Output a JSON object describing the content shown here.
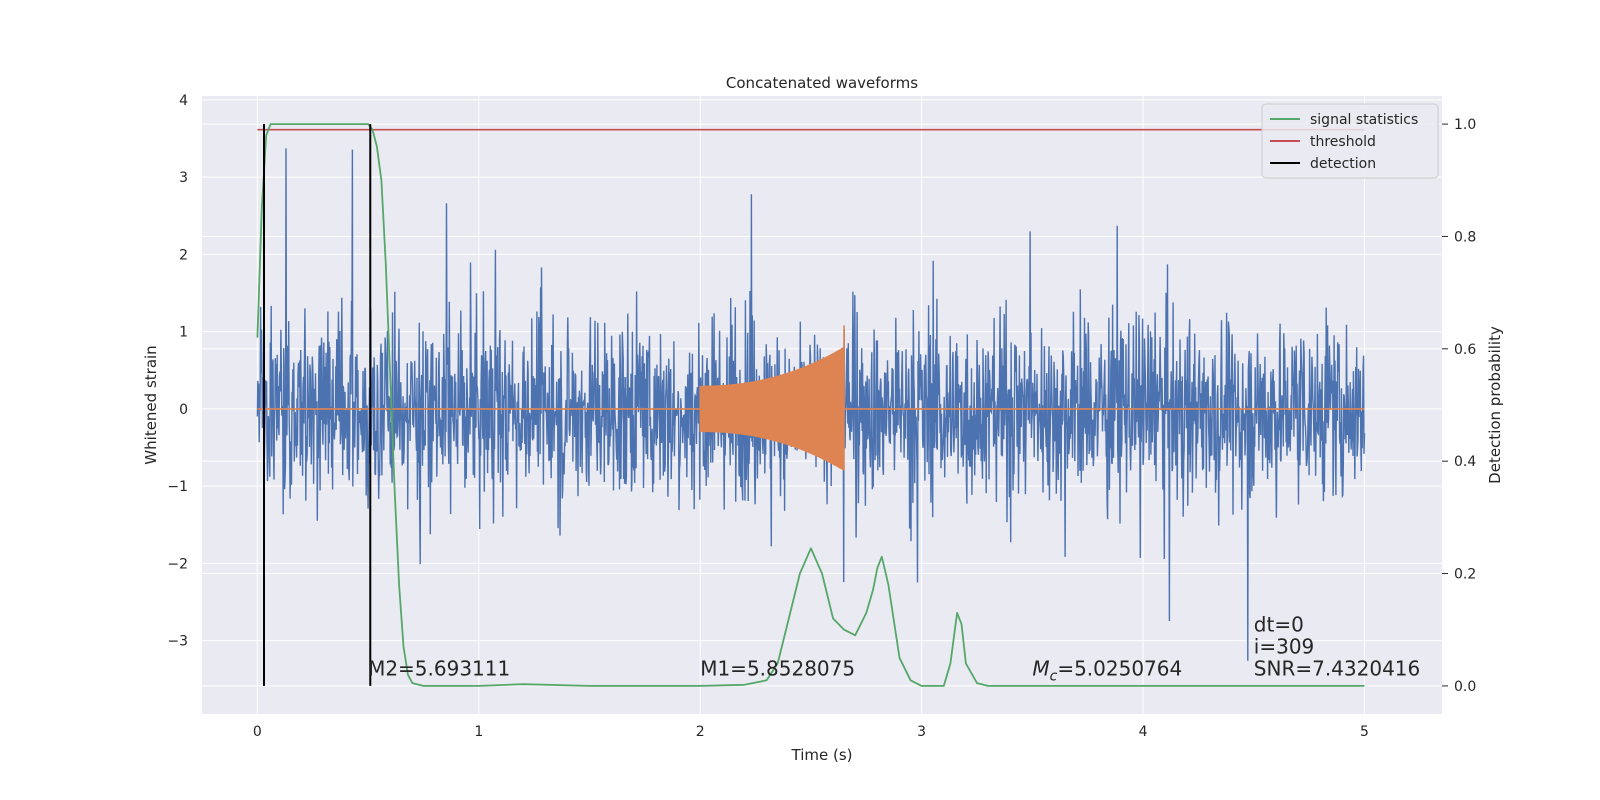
{
  "chart_data": {
    "type": "line",
    "title": "Concatenated waveforms",
    "xlabel": "Time (s)",
    "ylabel": "Whitened strain",
    "ylabel_right": "Detection probability",
    "xlim": [
      -0.25,
      5.35
    ],
    "ylim": [
      -3.95,
      4.05
    ],
    "ylim_right": [
      -0.05,
      1.05
    ],
    "grid": true,
    "xticks": [
      0,
      1,
      2,
      3,
      4,
      5
    ],
    "xtick_labels": [
      "0",
      "1",
      "2",
      "3",
      "4",
      "5"
    ],
    "yticks": [
      -3,
      -2,
      -1,
      0,
      1,
      2,
      3,
      4
    ],
    "ytick_labels": [
      "−3",
      "−2",
      "−1",
      "0",
      "1",
      "2",
      "3",
      "4"
    ],
    "yticks_right": [
      0.0,
      0.2,
      0.4,
      0.6,
      0.8,
      1.0
    ],
    "ytick_labels_right": [
      "0.0",
      "0.2",
      "0.4",
      "0.6",
      "0.8",
      "1.0"
    ],
    "legend_position": "top-right",
    "legend": [
      "signal statistics",
      "threshold",
      "detection"
    ],
    "colors": {
      "strain": "#4c72b0",
      "template": "#dd8452",
      "signal_statistics": "#55a868",
      "threshold": "#c44e52",
      "detection": "#000000",
      "background": "#eaeaf2",
      "grid": "#ffffff"
    },
    "series": [
      {
        "name": "",
        "axis": "left",
        "kind": "noise",
        "x_range": [
          0,
          5
        ],
        "typical_amplitude": 0.9,
        "approx_range": [
          -3.6,
          3.7
        ]
      },
      {
        "name": "",
        "axis": "left",
        "kind": "chirp",
        "x_range": [
          2.0,
          2.65
        ],
        "amplitude_start": 0.3,
        "amplitude_end": 0.8
      },
      {
        "name": "signal statistics",
        "axis": "right",
        "x": [
          0.0,
          0.02,
          0.04,
          0.06,
          0.1,
          0.2,
          0.3,
          0.4,
          0.5,
          0.52,
          0.54,
          0.56,
          0.58,
          0.6,
          0.62,
          0.64,
          0.66,
          0.68,
          0.7,
          0.75,
          0.8,
          1.0,
          1.2,
          1.5,
          1.8,
          2.0,
          2.2,
          2.3,
          2.35,
          2.4,
          2.45,
          2.5,
          2.55,
          2.6,
          2.65,
          2.7,
          2.75,
          2.78,
          2.8,
          2.82,
          2.85,
          2.9,
          2.95,
          3.0,
          3.1,
          3.13,
          3.16,
          3.18,
          3.2,
          3.25,
          3.3,
          3.5,
          4.0,
          4.5,
          5.0
        ],
        "values": [
          0.62,
          0.85,
          0.98,
          1.0,
          1.0,
          1.0,
          1.0,
          1.0,
          1.0,
          0.99,
          0.96,
          0.9,
          0.75,
          0.55,
          0.35,
          0.18,
          0.07,
          0.02,
          0.005,
          0.0,
          0.0,
          0.0,
          0.003,
          0.0,
          0.0,
          0.0,
          0.002,
          0.01,
          0.04,
          0.12,
          0.2,
          0.245,
          0.2,
          0.12,
          0.1,
          0.09,
          0.13,
          0.17,
          0.21,
          0.23,
          0.18,
          0.05,
          0.01,
          0.0,
          0.0,
          0.04,
          0.13,
          0.11,
          0.04,
          0.005,
          0.0,
          0.0,
          0.0,
          0.0,
          0.0
        ]
      },
      {
        "name": "threshold",
        "axis": "right",
        "x": [
          0,
          5
        ],
        "values": [
          0.99,
          0.99
        ]
      },
      {
        "name": "detection",
        "axis": "right",
        "kind": "vlines",
        "x": [
          0.03,
          0.51
        ],
        "values": [
          1.0,
          1.0
        ]
      }
    ],
    "annotations": [
      {
        "text": "M2=5.693111",
        "x": 0.5,
        "y": -3.45
      },
      {
        "text": "M1=5.8528075",
        "x": 2.0,
        "y": -3.45
      },
      {
        "text": "Mc=5.0250764",
        "prefix": "M",
        "subscript": "c",
        "suffix": "=5.0250764",
        "x": 3.5,
        "y": -3.45
      },
      {
        "text": "SNR=7.4320416",
        "x": 4.5,
        "y": -3.45
      },
      {
        "text": "dt=0",
        "x": 4.5,
        "y": -2.88
      },
      {
        "text": "i=309",
        "x": 4.5,
        "y": -3.17
      }
    ]
  }
}
